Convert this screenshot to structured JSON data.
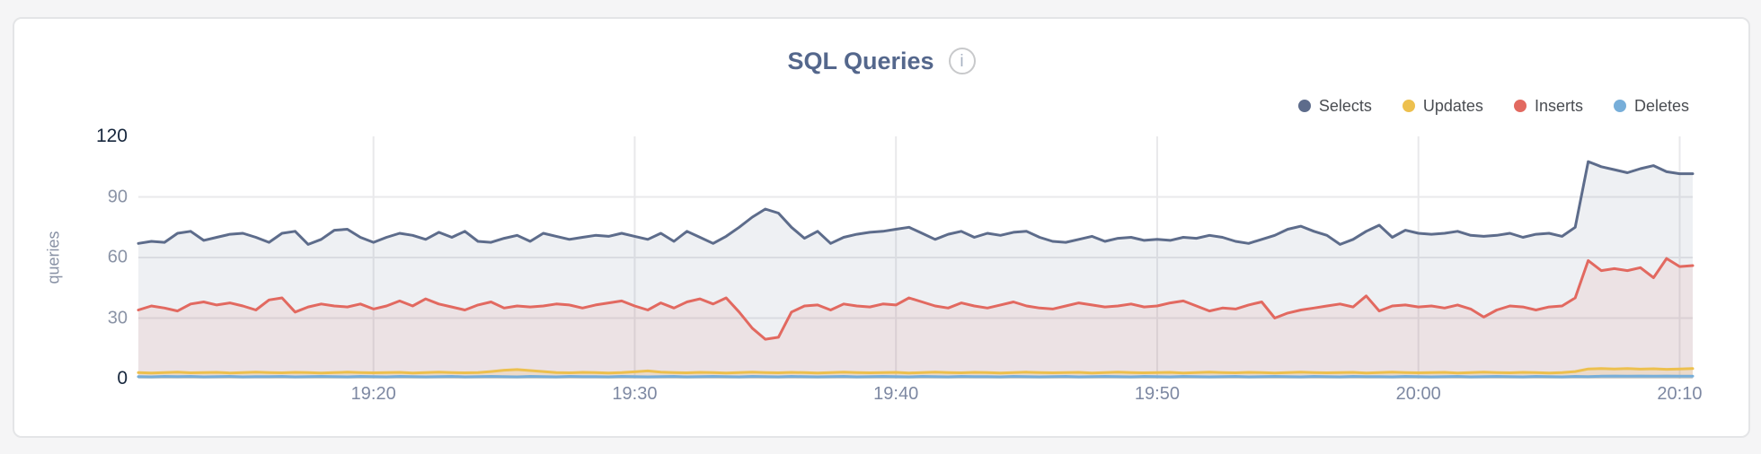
{
  "header": {
    "title": "SQL Queries",
    "info_glyph": "i"
  },
  "chart_data": {
    "type": "area",
    "title": "SQL Queries",
    "ylabel": "queries",
    "ylim": [
      0,
      120
    ],
    "grid": true,
    "legend_position": "top-right",
    "x_range_minutes": [
      1151,
      1210.5
    ],
    "x_ticks": [
      {
        "label": "19:20",
        "min": 1160
      },
      {
        "label": "19:30",
        "min": 1170
      },
      {
        "label": "19:40",
        "min": 1180
      },
      {
        "label": "19:50",
        "min": 1190
      },
      {
        "label": "20:00",
        "min": 1200
      },
      {
        "label": "20:10",
        "min": 1210
      }
    ],
    "y_ticks": [
      {
        "label": "120",
        "value": 120,
        "emphasized": true,
        "gridline": false
      },
      {
        "label": "90",
        "value": 90,
        "emphasized": false,
        "gridline": true
      },
      {
        "label": "60",
        "value": 60,
        "emphasized": false,
        "gridline": true
      },
      {
        "label": "30",
        "value": 30,
        "emphasized": false,
        "gridline": true
      },
      {
        "label": "0",
        "value": 0,
        "emphasized": true,
        "gridline": false
      }
    ],
    "series": [
      {
        "name": "Selects",
        "color": "#5d6c8b",
        "fill_opacity": 0.1,
        "values": [
          67,
          68,
          67.5,
          72,
          73,
          68.5,
          70,
          71.5,
          72,
          70,
          67.5,
          72,
          73,
          66.5,
          69,
          73.5,
          74,
          70,
          67.5,
          70,
          72,
          71,
          69,
          72.5,
          70,
          73,
          68,
          67.5,
          69.5,
          71,
          68,
          72,
          70.5,
          69,
          70,
          71,
          70.5,
          72,
          70.5,
          69,
          72,
          68,
          73,
          70,
          67,
          70.5,
          75,
          80,
          84,
          82,
          75,
          69.5,
          73,
          67,
          70,
          71.5,
          72.5,
          73,
          74,
          75,
          72,
          69,
          71.5,
          73,
          70,
          72,
          71,
          72.5,
          73,
          70,
          68,
          67.5,
          69,
          70.5,
          68,
          69.5,
          70,
          68.5,
          69,
          68.5,
          70,
          69.5,
          71,
          70,
          68,
          67,
          69,
          71,
          74,
          75.5,
          73,
          71,
          66.5,
          69,
          73,
          76,
          70,
          73.5,
          72,
          71.5,
          72,
          73,
          71,
          70.5,
          71,
          72,
          70,
          71.5,
          72,
          70.5,
          75,
          107.5,
          105,
          103.5,
          102,
          104,
          105.5,
          102.5,
          101.5,
          101.5
        ]
      },
      {
        "name": "Updates",
        "color": "#edc04e",
        "fill_opacity": 0.18,
        "values": [
          3,
          2.8,
          3,
          3.2,
          2.9,
          3,
          3.1,
          2.8,
          3,
          3.2,
          3,
          2.9,
          3.1,
          3,
          2.8,
          3,
          3.2,
          3,
          2.9,
          3,
          3.1,
          2.8,
          3,
          3.2,
          3,
          2.9,
          3,
          3.5,
          4.2,
          4.5,
          4,
          3.5,
          3,
          2.9,
          3.1,
          3,
          2.8,
          3,
          3.4,
          3.8,
          3.2,
          3,
          2.9,
          3.1,
          3,
          2.8,
          3,
          3.2,
          3,
          2.9,
          3.1,
          3,
          2.8,
          3,
          3.2,
          3,
          2.9,
          3,
          3.1,
          2.8,
          3,
          3.2,
          3,
          2.9,
          3.1,
          3,
          2.8,
          3,
          3.2,
          3,
          2.9,
          3,
          3.1,
          2.8,
          3,
          3.2,
          3,
          2.9,
          3,
          3.1,
          2.8,
          3,
          3.2,
          3,
          2.9,
          3.1,
          3,
          2.8,
          3,
          3.2,
          3,
          2.9,
          3,
          3.1,
          2.8,
          3,
          3.2,
          3,
          2.9,
          3,
          3.1,
          2.8,
          3,
          3.2,
          3,
          2.9,
          3.1,
          3,
          2.8,
          3,
          3.5,
          4.8,
          5,
          4.8,
          5,
          4.7,
          4.9,
          4.6,
          4.8,
          5
        ]
      },
      {
        "name": "Inserts",
        "color": "#e26960",
        "fill_opacity": 0.1,
        "values": [
          34,
          36,
          35,
          33.5,
          37,
          38,
          36.5,
          37.5,
          36,
          34,
          39,
          40,
          33,
          35.5,
          37,
          36,
          35.5,
          37,
          34.5,
          36,
          38.5,
          36,
          39.5,
          37,
          35.5,
          34,
          36.5,
          38,
          35,
          36,
          35.5,
          36,
          37,
          36.5,
          35,
          36.5,
          37.5,
          38.5,
          36,
          34,
          37.5,
          35,
          38,
          39.5,
          37,
          40,
          33,
          25,
          19.5,
          20.5,
          33,
          36,
          36.5,
          34,
          37,
          36,
          35.5,
          37,
          36.5,
          40,
          38,
          36,
          35,
          37.5,
          36,
          35,
          36.5,
          38,
          36,
          35,
          34.5,
          36,
          37.5,
          36.5,
          35.5,
          36,
          37,
          35.5,
          36,
          37.5,
          38.5,
          36,
          33.5,
          35,
          34.5,
          36.5,
          38,
          30,
          32.5,
          34,
          35,
          36,
          37,
          35.5,
          41,
          33.5,
          36,
          36.5,
          35.5,
          36,
          35,
          36.5,
          34.5,
          30.5,
          34,
          36,
          35.5,
          34,
          35.5,
          36,
          40,
          58.5,
          53.5,
          54.5,
          53.5,
          55,
          50,
          59.5,
          55.5,
          56
        ]
      },
      {
        "name": "Deletes",
        "color": "#77aed9",
        "fill_opacity": 0.25,
        "values": [
          1,
          0.9,
          1.1,
          1,
          1.1,
          0.9,
          1,
          1.1,
          0.9,
          1,
          1,
          1.1,
          0.9,
          1,
          1.1,
          1,
          0.9,
          1.1,
          1,
          0.9,
          1.1,
          1,
          0.9,
          1,
          1.1,
          0.9,
          1,
          1.1,
          1,
          0.9,
          1.1,
          1,
          0.9,
          1.1,
          1,
          1,
          0.9,
          1.1,
          1,
          0.9,
          1,
          1.1,
          0.9,
          1,
          1.1,
          1,
          0.9,
          1.1,
          1,
          0.9,
          1.1,
          1,
          0.9,
          1,
          1.1,
          0.9,
          1,
          1.1,
          1,
          0.9,
          1.1,
          1,
          0.9,
          1.1,
          1,
          1,
          0.9,
          1.1,
          1,
          0.9,
          1,
          1.1,
          0.9,
          1,
          1.1,
          1,
          0.9,
          1.1,
          1,
          0.9,
          1.1,
          1,
          0.9,
          1,
          1.1,
          0.9,
          1,
          1.1,
          1,
          0.9,
          1.1,
          1,
          0.9,
          1.1,
          1,
          1,
          0.9,
          1.1,
          1,
          0.9,
          1,
          1.1,
          0.9,
          1,
          1.1,
          1,
          0.9,
          1.1,
          1,
          0.9,
          1.1,
          1,
          1.2,
          1.3,
          1.2,
          1.3,
          1.2,
          1.3,
          1.2,
          1.2
        ]
      }
    ]
  }
}
